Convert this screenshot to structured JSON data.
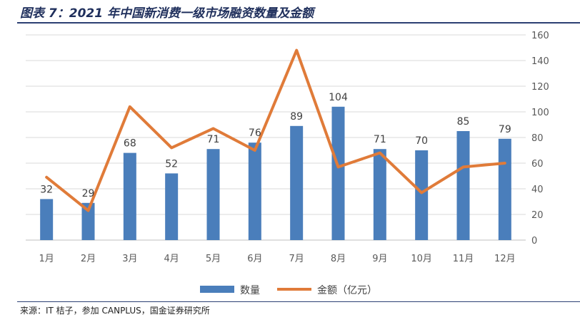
{
  "figure": {
    "title": "图表 7：2021 年中国新消费一级市场融资数量及金额",
    "source": "来源：IT 桔子，参加 CANPLUS，国金证券研究所"
  },
  "chart_data": {
    "type": "bar+line",
    "categories": [
      "1月",
      "2月",
      "3月",
      "4月",
      "5月",
      "6月",
      "7月",
      "8月",
      "9月",
      "10月",
      "11月",
      "12月"
    ],
    "series": [
      {
        "name": "数量",
        "type": "bar",
        "values": [
          32,
          29,
          68,
          52,
          71,
          76,
          89,
          104,
          71,
          70,
          85,
          79
        ],
        "color": "#4a7ebb"
      },
      {
        "name": "金额（亿元）",
        "type": "line",
        "values": [
          49,
          23,
          104,
          72,
          87,
          70,
          148,
          57,
          68,
          37,
          57,
          60
        ],
        "color": "#e07b39"
      }
    ],
    "yaxis": {
      "position": "right",
      "min": 0,
      "max": 160,
      "ticks": [
        0,
        20,
        40,
        60,
        80,
        100,
        120,
        140,
        160
      ]
    },
    "grid": true,
    "legend": "bottom"
  }
}
